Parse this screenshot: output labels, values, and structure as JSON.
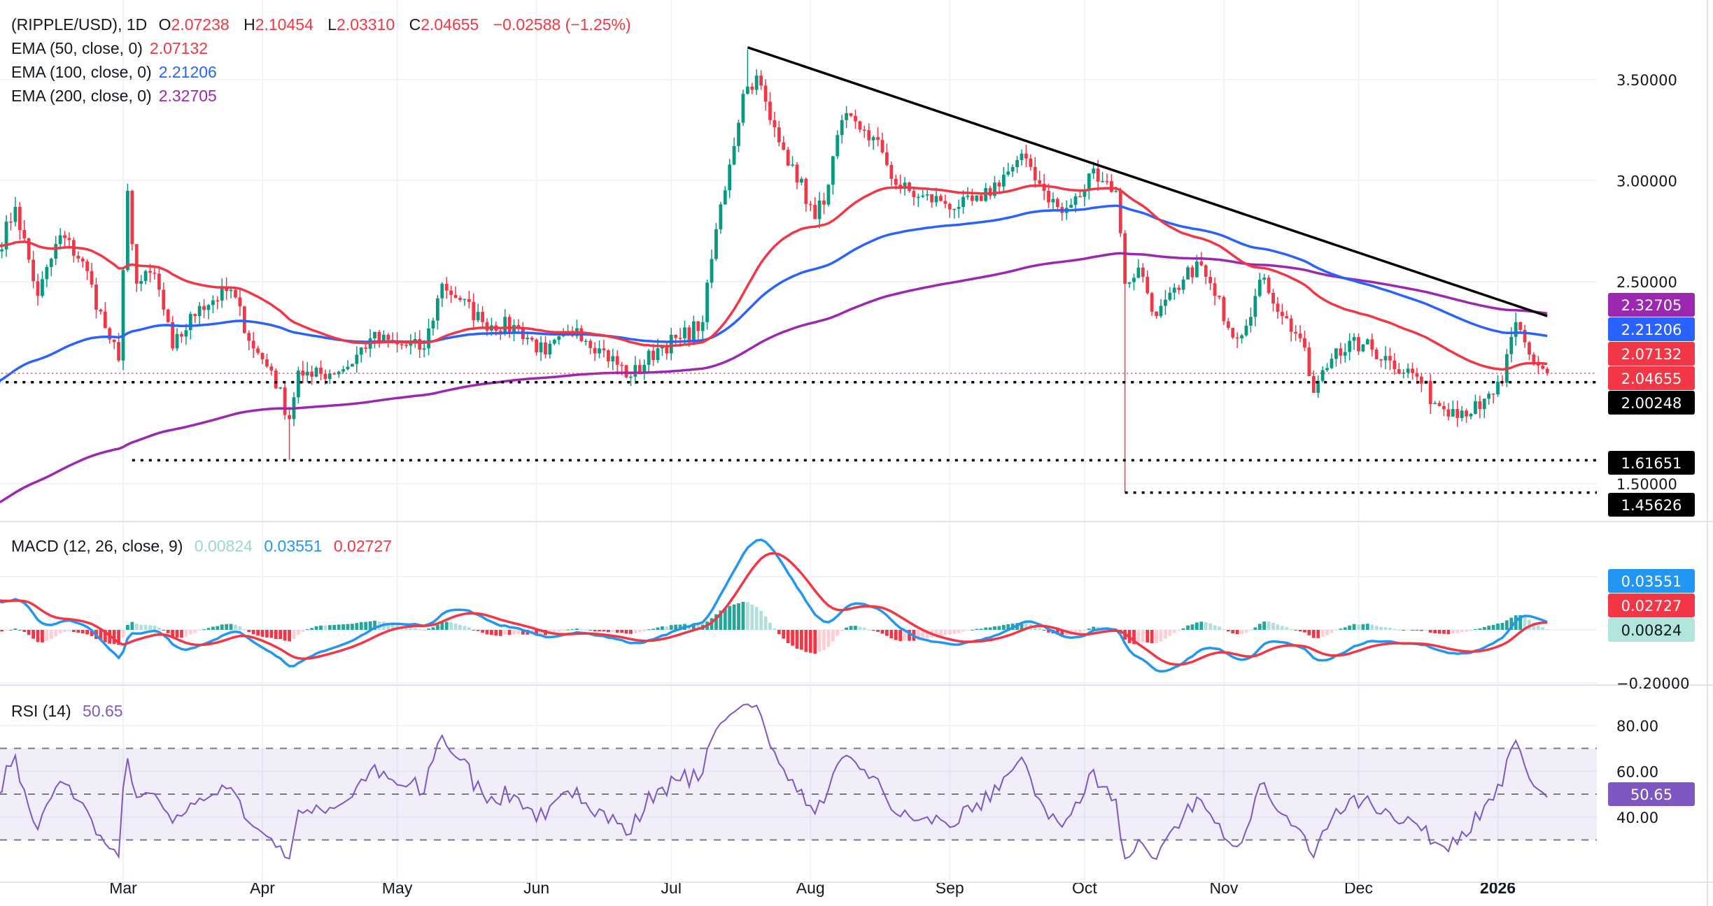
{
  "header": {
    "symbol": "(RIPPLE/USD), 1D",
    "open_label": "O",
    "open": "2.07238",
    "high_label": "H",
    "high": "2.10454",
    "low_label": "L",
    "low": "2.03310",
    "close_label": "C",
    "close": "2.04655",
    "change": "−0.02588 (−1.25%)"
  },
  "indicators": {
    "ema50": {
      "label": "EMA (50, close, 0)",
      "value": "2.07132",
      "color": "#f23645"
    },
    "ema100": {
      "label": "EMA (100, close, 0)",
      "value": "2.21206",
      "color": "#2962ff"
    },
    "ema200": {
      "label": "EMA (200, close, 0)",
      "value": "2.32705",
      "color": "#9c27b0"
    },
    "macd": {
      "label": "MACD (12, 26, close, 9)",
      "histogram": "0.00824",
      "macd": "0.03551",
      "signal": "0.02727",
      "hist_color": "#b2dfdb",
      "macd_color": "#2196f3",
      "signal_color": "#f23645"
    },
    "rsi": {
      "label": "RSI (14)",
      "value": "50.65",
      "color": "#7e57c2"
    }
  },
  "price_axis": {
    "ticks": [
      "3.50000",
      "3.00000",
      "2.50000",
      "1.50000"
    ],
    "tags": [
      {
        "text": "2.32705",
        "color": "#9c27b0"
      },
      {
        "text": "2.21206",
        "color": "#2962ff"
      },
      {
        "text": "2.07132",
        "color": "#f23645"
      },
      {
        "text": "2.04655",
        "color": "#f23645"
      },
      {
        "text": "2.00248",
        "color": "#000000"
      },
      {
        "text": "1.61651",
        "color": "#000000"
      },
      {
        "text": "1.45626",
        "color": "#000000"
      }
    ]
  },
  "macd_axis": {
    "ticks": [
      "−0.20000"
    ],
    "tags": [
      "0.03551",
      "0.02727",
      "0.00824"
    ]
  },
  "rsi_axis": {
    "ticks": [
      "80.00",
      "60.00",
      "40.00"
    ],
    "tag": "50.65"
  },
  "time_axis": {
    "labels": [
      "Mar",
      "Apr",
      "May",
      "Jun",
      "Jul",
      "Aug",
      "Sep",
      "Oct",
      "Nov",
      "Dec",
      "2026"
    ]
  },
  "chart_data": {
    "type": "candlestick",
    "title": "(RIPPLE/USD), 1D",
    "y_scale": "linear",
    "ylim": [
      1.3,
      3.75
    ],
    "grid": true,
    "up_color": "#089981",
    "down_color": "#f23645",
    "closes": [
      [
        "2025-02-01",
        2.65
      ],
      [
        "2025-02-05",
        2.87
      ],
      [
        "2025-02-10",
        2.43
      ],
      [
        "2025-02-15",
        2.73
      ],
      [
        "2025-02-20",
        2.6
      ],
      [
        "2025-02-25",
        2.27
      ],
      [
        "2025-02-28",
        2.11
      ],
      [
        "2025-03-02",
        2.95
      ],
      [
        "2025-03-04",
        2.49
      ],
      [
        "2025-03-08",
        2.54
      ],
      [
        "2025-03-12",
        2.17
      ],
      [
        "2025-03-18",
        2.38
      ],
      [
        "2025-03-25",
        2.46
      ],
      [
        "2025-03-30",
        2.17
      ],
      [
        "2025-04-03",
        2.06
      ],
      [
        "2025-04-07",
        1.82
      ],
      [
        "2025-04-09",
        2.06
      ],
      [
        "2025-04-12",
        2.03
      ],
      [
        "2025-04-20",
        2.08
      ],
      [
        "2025-04-25",
        2.22
      ],
      [
        "2025-05-01",
        2.19
      ],
      [
        "2025-05-07",
        2.17
      ],
      [
        "2025-05-11",
        2.49
      ],
      [
        "2025-05-15",
        2.41
      ],
      [
        "2025-05-20",
        2.3
      ],
      [
        "2025-05-28",
        2.27
      ],
      [
        "2025-06-03",
        2.14
      ],
      [
        "2025-06-10",
        2.27
      ],
      [
        "2025-06-15",
        2.17
      ],
      [
        "2025-06-22",
        2.03
      ],
      [
        "2025-06-28",
        2.17
      ],
      [
        "2025-07-03",
        2.22
      ],
      [
        "2025-07-08",
        2.3
      ],
      [
        "2025-07-11",
        2.76
      ],
      [
        "2025-07-14",
        3.08
      ],
      [
        "2025-07-17",
        3.43
      ],
      [
        "2025-07-20",
        3.52
      ],
      [
        "2025-07-23",
        3.3
      ],
      [
        "2025-07-25",
        3.19
      ],
      [
        "2025-07-28",
        3.08
      ],
      [
        "2025-08-02",
        2.81
      ],
      [
        "2025-08-05",
        2.98
      ],
      [
        "2025-08-08",
        3.3
      ],
      [
        "2025-08-13",
        3.25
      ],
      [
        "2025-08-17",
        3.14
      ],
      [
        "2025-08-20",
        2.98
      ],
      [
        "2025-08-25",
        2.92
      ],
      [
        "2025-08-30",
        2.9
      ],
      [
        "2025-09-03",
        2.87
      ],
      [
        "2025-09-08",
        2.9
      ],
      [
        "2025-09-13",
        3.03
      ],
      [
        "2025-09-18",
        3.11
      ],
      [
        "2025-09-22",
        2.95
      ],
      [
        "2025-09-26",
        2.84
      ],
      [
        "2025-09-30",
        2.92
      ],
      [
        "2025-10-03",
        3.06
      ],
      [
        "2025-10-08",
        2.95
      ],
      [
        "2025-10-10",
        2.49
      ],
      [
        "2025-10-13",
        2.57
      ],
      [
        "2025-10-17",
        2.33
      ],
      [
        "2025-10-22",
        2.46
      ],
      [
        "2025-10-26",
        2.6
      ],
      [
        "2025-10-30",
        2.43
      ],
      [
        "2025-11-04",
        2.22
      ],
      [
        "2025-11-10",
        2.52
      ],
      [
        "2025-11-14",
        2.33
      ],
      [
        "2025-11-18",
        2.22
      ],
      [
        "2025-11-21",
        1.95
      ],
      [
        "2025-11-26",
        2.17
      ],
      [
        "2025-12-02",
        2.19
      ],
      [
        "2025-12-08",
        2.11
      ],
      [
        "2025-12-14",
        2.03
      ],
      [
        "2025-12-18",
        1.9
      ],
      [
        "2025-12-22",
        1.87
      ],
      [
        "2025-12-28",
        1.87
      ],
      [
        "2026-01-02",
        2.0
      ],
      [
        "2026-01-05",
        2.3
      ],
      [
        "2026-01-08",
        2.14
      ],
      [
        "2026-01-12",
        2.04655
      ]
    ],
    "extremes": [
      {
        "date": "2025-04-07",
        "low": 1.61651
      },
      {
        "date": "2025-07-18",
        "high": 3.65
      },
      {
        "date": "2025-10-10",
        "low": 1.45626
      }
    ],
    "ema_start": {
      "ema50": 2.68,
      "ema100": 1.99,
      "ema200": 1.39
    },
    "trendline": {
      "from": [
        "2025-07-18",
        3.66
      ],
      "to": [
        "2026-01-12",
        2.33
      ],
      "color": "#000000"
    },
    "horizontal_levels": [
      {
        "value": 2.00248,
        "from": "2025-02-01",
        "style": "dotted",
        "color": "#000000"
      },
      {
        "value": 1.61651,
        "from": "2025-03-03",
        "style": "dotted",
        "color": "#000000"
      },
      {
        "value": 1.45626,
        "from": "2025-10-10",
        "style": "dotted",
        "color": "#000000"
      },
      {
        "value": 2.04655,
        "from": "2025-02-01",
        "style": "dotted",
        "color": "#f23645"
      }
    ],
    "macd_ylim": [
      -0.22,
      0.42
    ],
    "rsi_ylim": [
      20,
      90
    ],
    "rsi_bands": [
      30,
      50,
      70
    ]
  }
}
